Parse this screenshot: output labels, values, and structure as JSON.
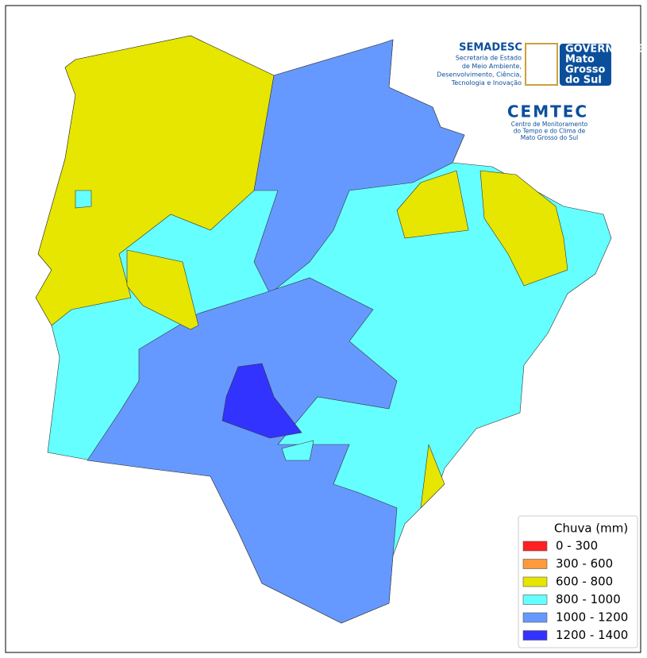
{
  "logos": {
    "semadesc": {
      "name": "SEMADESC",
      "lines": [
        "Secretaria de Estado",
        "de Meio Ambiente,",
        "Desenvolvimento, Ciência,",
        "Tecnologia e Inovação"
      ]
    },
    "governo": {
      "lines": [
        "GOVERNO DE",
        "Mato",
        "Grosso",
        "do Sul"
      ]
    },
    "cemtec": {
      "name": "CEMTEC",
      "lines": [
        "Centro de Monitoramento",
        "do Tempo e do Clima de",
        "Mato Grosso do Sul"
      ]
    }
  },
  "legend": {
    "title": "Chuva (mm)",
    "items": [
      {
        "label": "0 - 300",
        "color": "#ff2020"
      },
      {
        "label": "300 - 600",
        "color": "#ff9a3c"
      },
      {
        "label": "600 - 800",
        "color": "#e6e600"
      },
      {
        "label": "800 - 1000",
        "color": "#66ffff"
      },
      {
        "label": "1000 - 1200",
        "color": "#6699ff"
      },
      {
        "label": "1200 - 1400",
        "color": "#3333ff"
      }
    ]
  }
}
